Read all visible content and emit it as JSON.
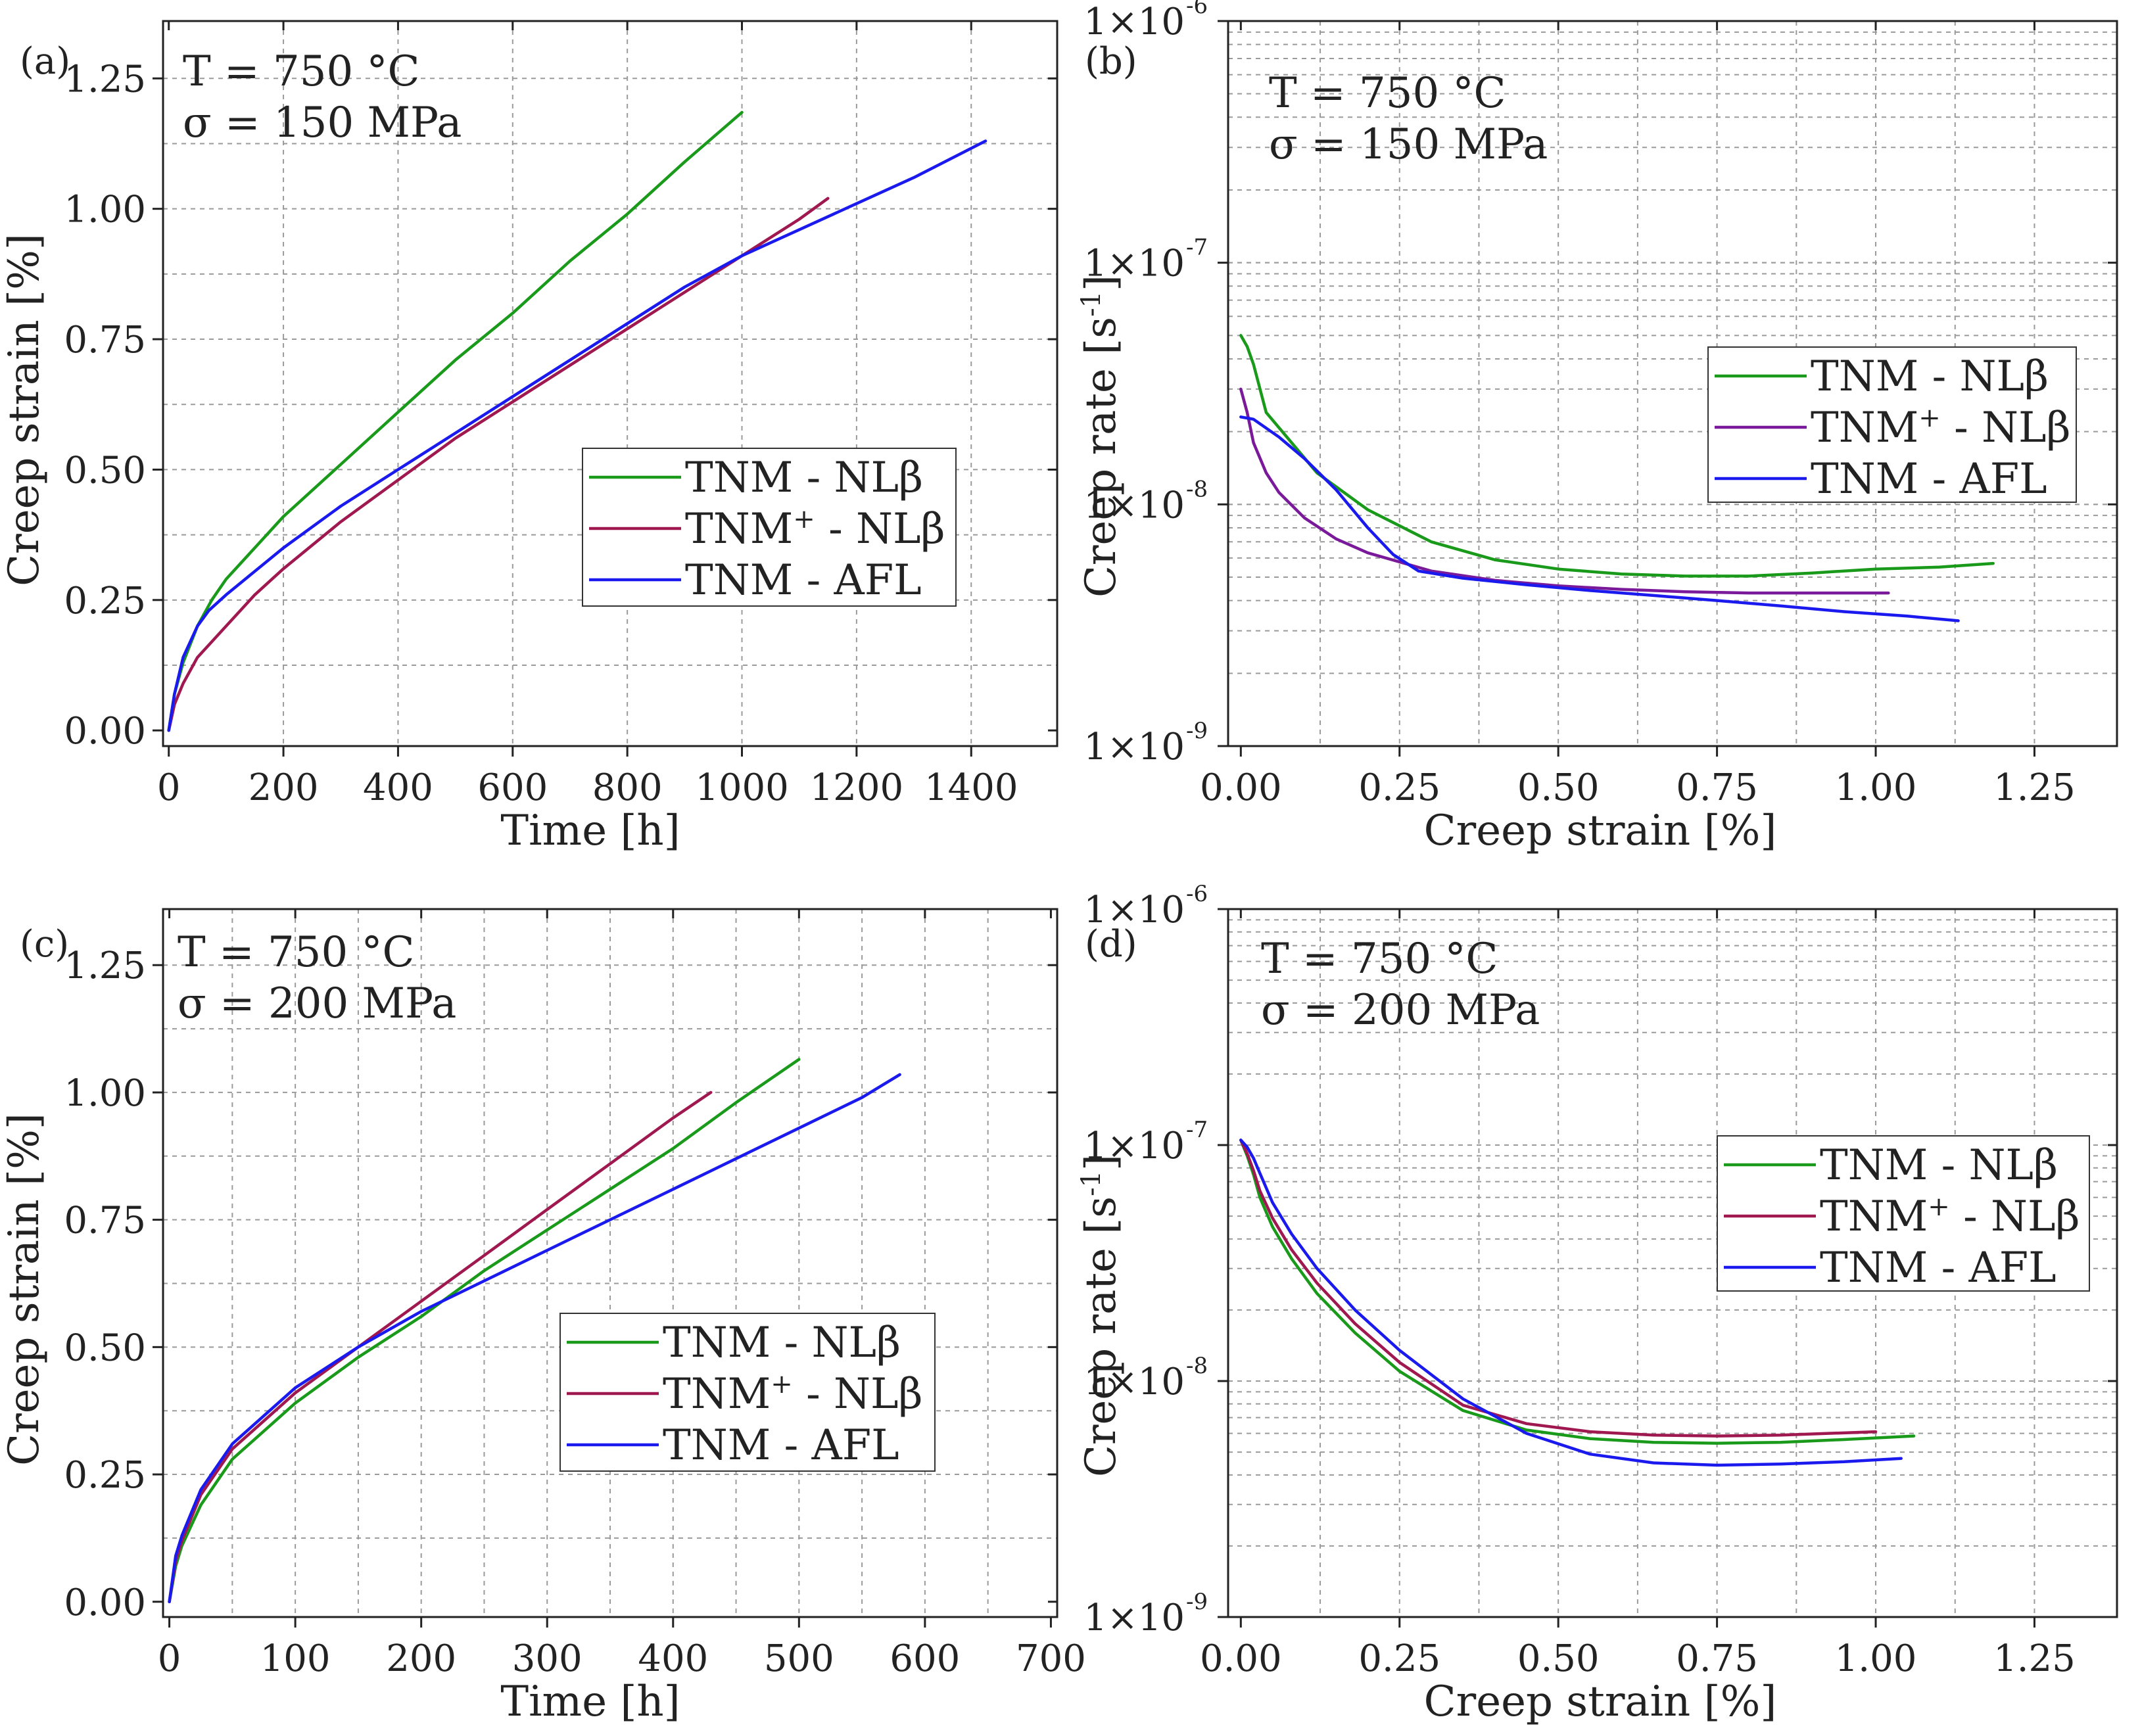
{
  "chart_data": [
    {
      "panel": "(a)",
      "type": "line",
      "xlabel": "Time [h]",
      "ylabel": "Creep strain [%]",
      "xlim": [
        -10,
        1550
      ],
      "ylim": [
        -0.03,
        1.36
      ],
      "xscale": "linear",
      "yscale": "linear",
      "xticks": [
        0,
        200,
        400,
        600,
        800,
        1000,
        1200,
        1400
      ],
      "xtick_labels": [
        "0",
        "200",
        "400",
        "600",
        "800",
        "1000",
        "1200",
        "1400"
      ],
      "yticks": [
        0.0,
        0.25,
        0.5,
        0.75,
        1.0,
        1.25
      ],
      "ytick_labels": [
        "0.00",
        "0.25",
        "0.50",
        "0.75",
        "1.00",
        "1.25"
      ],
      "x_grid": [
        200,
        400,
        600,
        800,
        1000,
        1200,
        1400
      ],
      "y_grid": [
        0.125,
        0.25,
        0.375,
        0.5,
        0.625,
        0.75,
        0.875,
        1.0,
        1.125,
        1.25
      ],
      "conditions": [
        "T = 750 °C",
        "σ = 150 MPa"
      ],
      "legend_position": "center-right",
      "series": [
        {
          "name": "TNM - NLβ",
          "base": "TNM",
          "sup": "",
          "suffix": " - NLβ",
          "color": "#1a9a1a",
          "x": [
            0,
            10,
            25,
            50,
            75,
            100,
            150,
            200,
            300,
            400,
            500,
            600,
            700,
            800,
            900,
            1000
          ],
          "y": [
            0,
            0.07,
            0.13,
            0.2,
            0.25,
            0.29,
            0.35,
            0.41,
            0.51,
            0.61,
            0.71,
            0.8,
            0.9,
            0.99,
            1.09,
            1.185
          ]
        },
        {
          "name": "TNM+ - NLβ",
          "base": "TNM",
          "sup": "+",
          "suffix": " - NLβ",
          "color": "#a01850",
          "x": [
            0,
            10,
            25,
            50,
            100,
            150,
            200,
            300,
            400,
            500,
            600,
            700,
            800,
            900,
            1000,
            1100,
            1150
          ],
          "y": [
            0,
            0.05,
            0.09,
            0.14,
            0.2,
            0.26,
            0.31,
            0.4,
            0.48,
            0.56,
            0.63,
            0.7,
            0.77,
            0.84,
            0.91,
            0.98,
            1.02
          ]
        },
        {
          "name": "TNM - AFL",
          "base": "TNM",
          "sup": "",
          "suffix": " - AFL",
          "color": "#1a1aee",
          "x": [
            0,
            10,
            25,
            50,
            70,
            100,
            200,
            300,
            400,
            500,
            600,
            700,
            800,
            900,
            1000,
            1100,
            1200,
            1300,
            1425
          ],
          "y": [
            0,
            0.07,
            0.14,
            0.2,
            0.23,
            0.26,
            0.35,
            0.43,
            0.5,
            0.57,
            0.64,
            0.71,
            0.78,
            0.85,
            0.91,
            0.96,
            1.01,
            1.06,
            1.13
          ]
        }
      ]
    },
    {
      "panel": "(b)",
      "type": "line",
      "xlabel": "Creep strain [%]",
      "ylabel": "Creep rate [s-1]",
      "ylabel_base": "Creep rate [s",
      "ylabel_sup": "-1",
      "ylabel_end": "]",
      "xlim": [
        -0.02,
        1.38
      ],
      "ylim": [
        1e-09,
        1e-06
      ],
      "xscale": "linear",
      "yscale": "log",
      "xticks": [
        0.0,
        0.25,
        0.5,
        0.75,
        1.0,
        1.25
      ],
      "xtick_labels": [
        "0.00",
        "0.25",
        "0.50",
        "0.75",
        "1.00",
        "1.25"
      ],
      "ytick_labels": [
        {
          "value": 1e-09,
          "base": "1×10",
          "exp": "-9"
        },
        {
          "value": 1e-08,
          "base": "1×10",
          "exp": "-8"
        },
        {
          "value": 1e-07,
          "base": "1×10",
          "exp": "-7"
        },
        {
          "value": 1e-06,
          "base": "1×10",
          "exp": "-6"
        }
      ],
      "x_grid": [
        0.125,
        0.25,
        0.375,
        0.5,
        0.625,
        0.75,
        0.875,
        1.0,
        1.125,
        1.25
      ],
      "y_grid_decades": [
        1e-09,
        1e-08,
        1e-07,
        1e-06
      ],
      "conditions": [
        "T = 750 °C",
        "σ = 150 MPa"
      ],
      "legend_position": "upper-right",
      "series": [
        {
          "name": "TNM - NLβ",
          "base": "TNM",
          "sup": "",
          "suffix": " - NLβ",
          "color": "#1a9a1a",
          "x": [
            0,
            0.01,
            0.02,
            0.04,
            0.08,
            0.12,
            0.2,
            0.3,
            0.4,
            0.5,
            0.6,
            0.7,
            0.8,
            0.9,
            1.0,
            1.1,
            1.185
          ],
          "y": [
            5e-08,
            4.5e-08,
            3.8e-08,
            2.4e-08,
            1.8e-08,
            1.35e-08,
            9.5e-09,
            7e-09,
            5.9e-09,
            5.4e-09,
            5.15e-09,
            5.05e-09,
            5.05e-09,
            5.2e-09,
            5.4e-09,
            5.5e-09,
            5.7e-09
          ]
        },
        {
          "name": "TNM+ - NLβ",
          "base": "TNM",
          "sup": "+",
          "suffix": " - NLβ",
          "color": "#7a1a9a",
          "x": [
            0,
            0.01,
            0.02,
            0.04,
            0.06,
            0.1,
            0.15,
            0.2,
            0.3,
            0.4,
            0.5,
            0.6,
            0.7,
            0.8,
            0.9,
            1.02
          ],
          "y": [
            3e-08,
            2.4e-08,
            1.8e-08,
            1.35e-08,
            1.12e-08,
            8.8e-09,
            7.2e-09,
            6.3e-09,
            5.3e-09,
            4.85e-09,
            4.6e-09,
            4.45e-09,
            4.35e-09,
            4.3e-09,
            4.3e-09,
            4.3e-09
          ]
        },
        {
          "name": "TNM - AFL",
          "base": "TNM",
          "sup": "",
          "suffix": " - AFL",
          "color": "#1a1aee",
          "x": [
            0,
            0.02,
            0.06,
            0.1,
            0.15,
            0.2,
            0.24,
            0.28,
            0.35,
            0.45,
            0.55,
            0.65,
            0.75,
            0.85,
            0.95,
            1.05,
            1.13
          ],
          "y": [
            2.3e-08,
            2.25e-08,
            1.9e-08,
            1.55e-08,
            1.15e-08,
            8e-09,
            6.2e-09,
            5.3e-09,
            4.95e-09,
            4.65e-09,
            4.4e-09,
            4.2e-09,
            4e-09,
            3.8e-09,
            3.6e-09,
            3.45e-09,
            3.3e-09
          ]
        }
      ]
    },
    {
      "panel": "(c)",
      "type": "line",
      "xlabel": "Time [h]",
      "ylabel": "Creep strain [%]",
      "xlim": [
        -5,
        705
      ],
      "ylim": [
        -0.03,
        1.36
      ],
      "xscale": "linear",
      "yscale": "linear",
      "xticks": [
        0,
        100,
        200,
        300,
        400,
        500,
        600,
        700
      ],
      "xtick_labels": [
        "0",
        "100",
        "200",
        "300",
        "400",
        "500",
        "600",
        "700"
      ],
      "yticks": [
        0.0,
        0.25,
        0.5,
        0.75,
        1.0,
        1.25
      ],
      "ytick_labels": [
        "0.00",
        "0.25",
        "0.50",
        "0.75",
        "1.00",
        "1.25"
      ],
      "x_grid": [
        50,
        100,
        150,
        200,
        250,
        300,
        350,
        400,
        450,
        500,
        550,
        600,
        650
      ],
      "y_grid": [
        0.125,
        0.25,
        0.375,
        0.5,
        0.625,
        0.75,
        0.875,
        1.0,
        1.125,
        1.25
      ],
      "conditions": [
        "T = 750 °C",
        "σ = 200 MPa"
      ],
      "legend_position": "center-right",
      "series": [
        {
          "name": "TNM - NLβ",
          "base": "TNM",
          "sup": "",
          "suffix": " - NLβ",
          "color": "#1a9a1a",
          "x": [
            0,
            5,
            10,
            25,
            50,
            100,
            150,
            200,
            250,
            300,
            350,
            400,
            450,
            500
          ],
          "y": [
            0,
            0.07,
            0.11,
            0.19,
            0.28,
            0.39,
            0.48,
            0.56,
            0.65,
            0.73,
            0.81,
            0.89,
            0.98,
            1.065
          ]
        },
        {
          "name": "TNM+ - NLβ",
          "base": "TNM",
          "sup": "+",
          "suffix": " - NLβ",
          "color": "#a01850",
          "x": [
            0,
            5,
            10,
            25,
            50,
            100,
            150,
            200,
            250,
            300,
            350,
            400,
            430
          ],
          "y": [
            0,
            0.08,
            0.12,
            0.21,
            0.3,
            0.41,
            0.5,
            0.59,
            0.68,
            0.77,
            0.86,
            0.95,
            1.0
          ]
        },
        {
          "name": "TNM - AFL",
          "base": "TNM",
          "sup": "",
          "suffix": " - AFL",
          "color": "#1a1aee",
          "x": [
            0,
            5,
            10,
            25,
            50,
            100,
            150,
            200,
            250,
            300,
            350,
            400,
            450,
            500,
            550,
            580
          ],
          "y": [
            0,
            0.09,
            0.13,
            0.22,
            0.31,
            0.42,
            0.5,
            0.57,
            0.63,
            0.69,
            0.75,
            0.81,
            0.87,
            0.93,
            0.99,
            1.035
          ]
        }
      ]
    },
    {
      "panel": "(d)",
      "type": "line",
      "xlabel": "Creep strain [%]",
      "ylabel": "Creep rate [s-1]",
      "ylabel_base": "Creep rate [s",
      "ylabel_sup": "-1",
      "ylabel_end": "]",
      "xlim": [
        -0.02,
        1.38
      ],
      "ylim": [
        1e-09,
        1e-06
      ],
      "xscale": "linear",
      "yscale": "log",
      "xticks": [
        0.0,
        0.25,
        0.5,
        0.75,
        1.0,
        1.25
      ],
      "xtick_labels": [
        "0.00",
        "0.25",
        "0.50",
        "0.75",
        "1.00",
        "1.25"
      ],
      "ytick_labels": [
        {
          "value": 1e-09,
          "base": "1×10",
          "exp": "-9"
        },
        {
          "value": 1e-08,
          "base": "1×10",
          "exp": "-8"
        },
        {
          "value": 1e-07,
          "base": "1×10",
          "exp": "-7"
        },
        {
          "value": 1e-06,
          "base": "1×10",
          "exp": "-6"
        }
      ],
      "x_grid": [
        0.125,
        0.25,
        0.375,
        0.5,
        0.625,
        0.75,
        0.875,
        1.0,
        1.125,
        1.25
      ],
      "y_grid_decades": [
        1e-09,
        1e-08,
        1e-07,
        1e-06
      ],
      "conditions": [
        "T = 750 °C",
        "σ = 200 MPa"
      ],
      "legend_position": "upper-right",
      "series": [
        {
          "name": "TNM - NLβ",
          "base": "TNM",
          "sup": "",
          "suffix": " - NLβ",
          "color": "#1a9a1a",
          "x": [
            0,
            0.01,
            0.02,
            0.03,
            0.05,
            0.08,
            0.12,
            0.18,
            0.25,
            0.35,
            0.45,
            0.55,
            0.65,
            0.75,
            0.85,
            0.95,
            1.06
          ],
          "y": [
            1.05e-07,
            9e-08,
            7.5e-08,
            6e-08,
            4.5e-08,
            3.3e-08,
            2.35e-08,
            1.6e-08,
            1.1e-08,
            7.5e-09,
            6.2e-09,
            5.7e-09,
            5.5e-09,
            5.45e-09,
            5.5e-09,
            5.65e-09,
            5.85e-09
          ]
        },
        {
          "name": "TNM+ - NLβ",
          "base": "TNM",
          "sup": "+",
          "suffix": " - NLβ",
          "color": "#a01850",
          "x": [
            0,
            0.01,
            0.02,
            0.03,
            0.05,
            0.08,
            0.12,
            0.18,
            0.25,
            0.35,
            0.45,
            0.55,
            0.65,
            0.75,
            0.85,
            1.0
          ],
          "y": [
            1.05e-07,
            9.2e-08,
            7.8e-08,
            6.4e-08,
            4.9e-08,
            3.6e-08,
            2.6e-08,
            1.75e-08,
            1.2e-08,
            7.9e-09,
            6.6e-09,
            6.1e-09,
            5.9e-09,
            5.85e-09,
            5.9e-09,
            6.1e-09
          ]
        },
        {
          "name": "TNM - AFL",
          "base": "TNM",
          "sup": "",
          "suffix": " - AFL",
          "color": "#1a1aee",
          "x": [
            0,
            0.01,
            0.02,
            0.03,
            0.05,
            0.08,
            0.12,
            0.18,
            0.25,
            0.35,
            0.45,
            0.55,
            0.65,
            0.75,
            0.85,
            0.95,
            1.04
          ],
          "y": [
            1.05e-07,
            9.8e-08,
            8.8e-08,
            7.6e-08,
            5.7e-08,
            4.2e-08,
            3e-08,
            2e-08,
            1.35e-08,
            8.4e-09,
            6e-09,
            4.9e-09,
            4.5e-09,
            4.4e-09,
            4.45e-09,
            4.55e-09,
            4.7e-09
          ]
        }
      ]
    }
  ]
}
